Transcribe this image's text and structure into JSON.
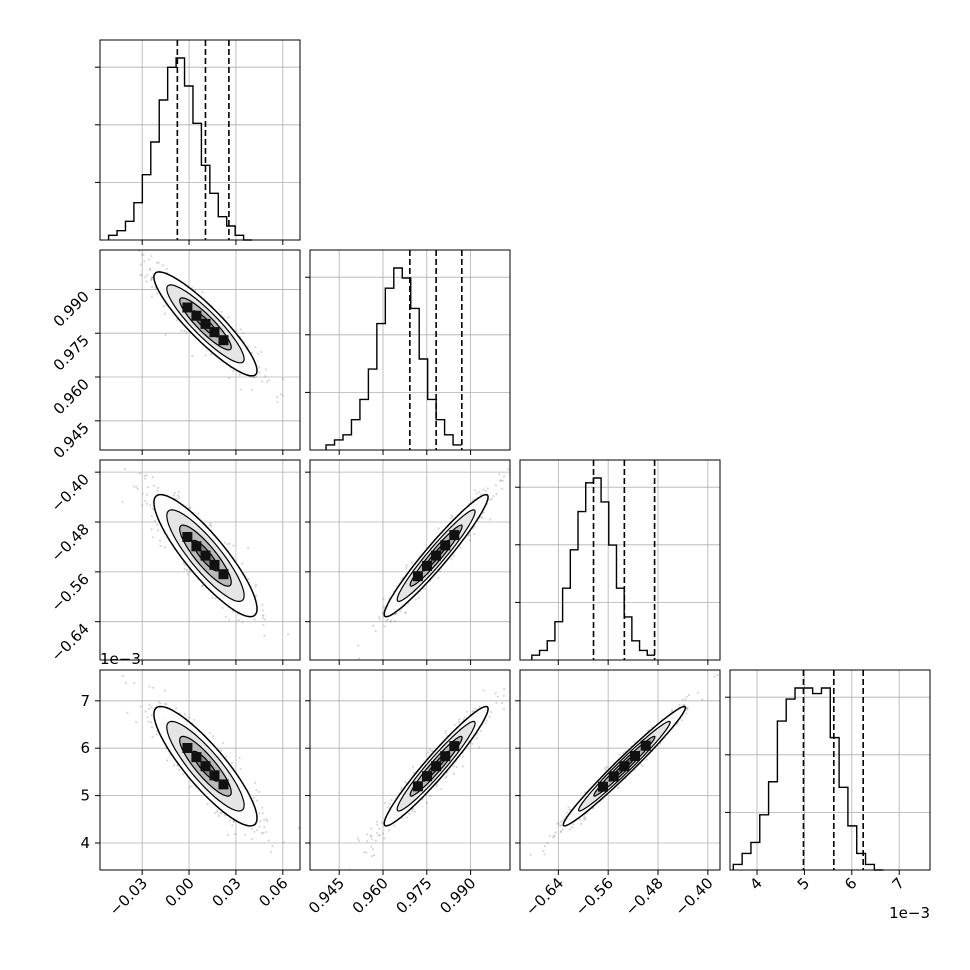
{
  "chart_data": {
    "type": "corner",
    "description_of_layout": "",
    "parameters": [
      {
        "index": 0,
        "range": [
          -0.057,
          0.071
        ],
        "ticks": [
          -0.03,
          0.0,
          0.03,
          0.06
        ],
        "tick_labels": [
          "−0.03",
          "0.00",
          "0.03",
          "0.06"
        ],
        "quantiles": [
          -0.0075,
          0.0105,
          0.0255
        ],
        "offset_label": ""
      },
      {
        "index": 1,
        "range": [
          0.935,
          1.0035
        ],
        "ticks": [
          0.945,
          0.96,
          0.975,
          0.99
        ],
        "tick_labels": [
          "0.945",
          "0.960",
          "0.975",
          "0.990"
        ],
        "quantiles": [
          0.9692,
          0.9782,
          0.987
        ],
        "offset_label": ""
      },
      {
        "index": 2,
        "range": [
          -0.7015,
          -0.3805
        ],
        "ticks": [
          -0.64,
          -0.56,
          -0.48,
          -0.4
        ],
        "tick_labels": [
          "−0.64",
          "−0.56",
          "−0.48",
          "−0.40"
        ],
        "quantiles": [
          -0.5835,
          -0.534,
          -0.4855
        ],
        "offset_label": ""
      },
      {
        "index": 3,
        "range": [
          3.43,
          7.65
        ],
        "ticks": [
          4,
          5,
          6,
          7
        ],
        "tick_labels": [
          "4",
          "5",
          "6",
          "7"
        ],
        "quantiles": [
          4.98,
          5.62,
          6.24
        ],
        "offset_label": "1e−3"
      }
    ],
    "histograms": [
      {
        "param": 0,
        "bin_lo": -0.0515,
        "bin_width": 0.0054,
        "counts": [
          1,
          2,
          4,
          8,
          14,
          21,
          30,
          37,
          39,
          33,
          25,
          16,
          10,
          5,
          3,
          1,
          0
        ]
      },
      {
        "param": 1,
        "bin_lo": 0.9405,
        "bin_width": 0.0029,
        "counts": [
          1,
          2,
          3,
          6,
          10,
          16,
          25,
          32,
          36,
          34,
          28,
          18,
          10,
          6,
          3,
          1
        ]
      },
      {
        "param": 2,
        "bin_lo": -0.6825,
        "bin_width": 0.01235,
        "counts": [
          1,
          2,
          4,
          8,
          15,
          23,
          31,
          37,
          38,
          33,
          24,
          15,
          9,
          4,
          2,
          1
        ]
      },
      {
        "param": 3,
        "bin_lo": 3.5,
        "bin_width": 0.186,
        "counts": [
          1,
          3,
          5,
          10,
          16,
          27,
          31,
          33,
          33,
          32,
          33,
          24,
          15,
          8,
          3,
          1,
          0
        ]
      }
    ],
    "correlations": [
      {
        "pair": [
          0,
          1
        ],
        "rho": -0.9
      },
      {
        "pair": [
          0,
          2
        ],
        "rho": -0.87
      },
      {
        "pair": [
          1,
          2
        ],
        "rho": 0.96
      },
      {
        "pair": [
          0,
          3
        ],
        "rho": -0.87
      },
      {
        "pair": [
          1,
          3
        ],
        "rho": 0.96
      },
      {
        "pair": [
          2,
          3
        ],
        "rho": 0.98
      }
    ],
    "grid": true,
    "colors": {
      "line": "#000000",
      "grid": "#b0b0b0",
      "sample": "#8c8c8c",
      "background": "#ffffff"
    }
  }
}
